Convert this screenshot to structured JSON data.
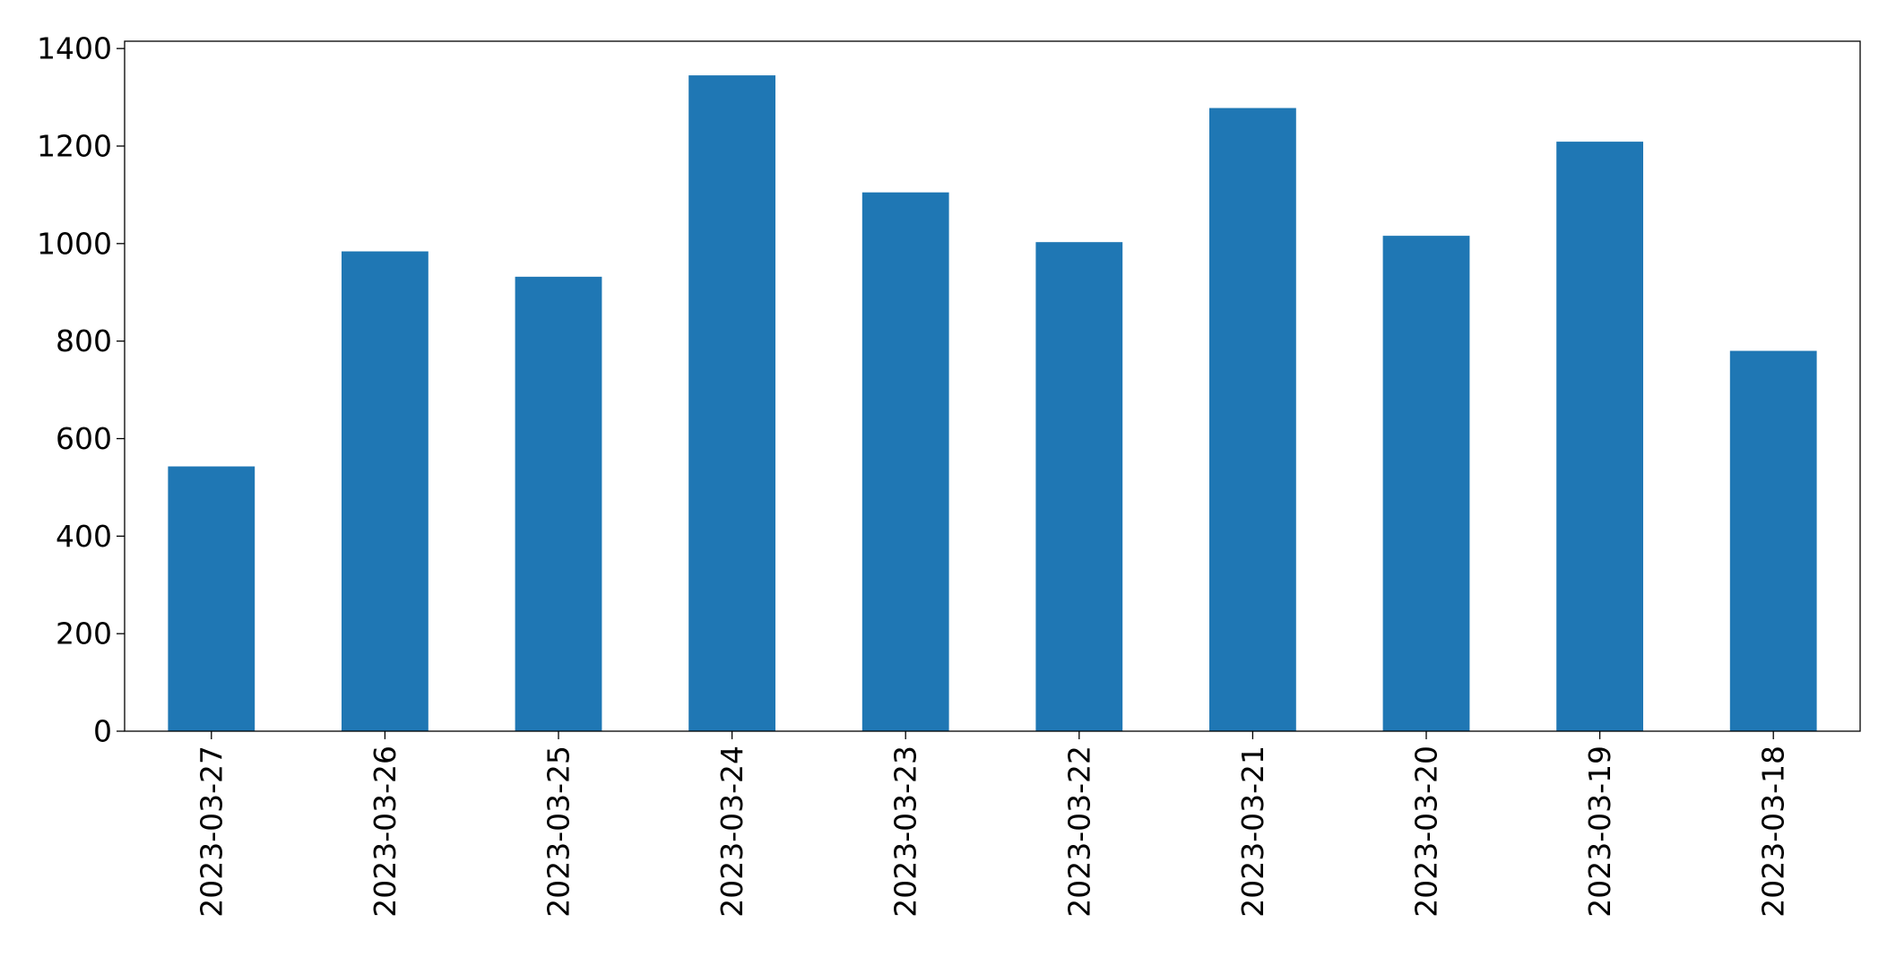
{
  "chart_data": {
    "type": "bar",
    "categories": [
      "2023-03-27",
      "2023-03-26",
      "2023-03-25",
      "2023-03-24",
      "2023-03-23",
      "2023-03-22",
      "2023-03-21",
      "2023-03-20",
      "2023-03-19",
      "2023-03-18"
    ],
    "values": [
      543,
      984,
      932,
      1345,
      1105,
      1003,
      1278,
      1016,
      1209,
      780
    ],
    "color": "#1f77b4",
    "ylim": [
      0,
      1415
    ],
    "yticks": [
      0,
      200,
      400,
      600,
      800,
      1000,
      1200,
      1400
    ],
    "grid": false
  }
}
